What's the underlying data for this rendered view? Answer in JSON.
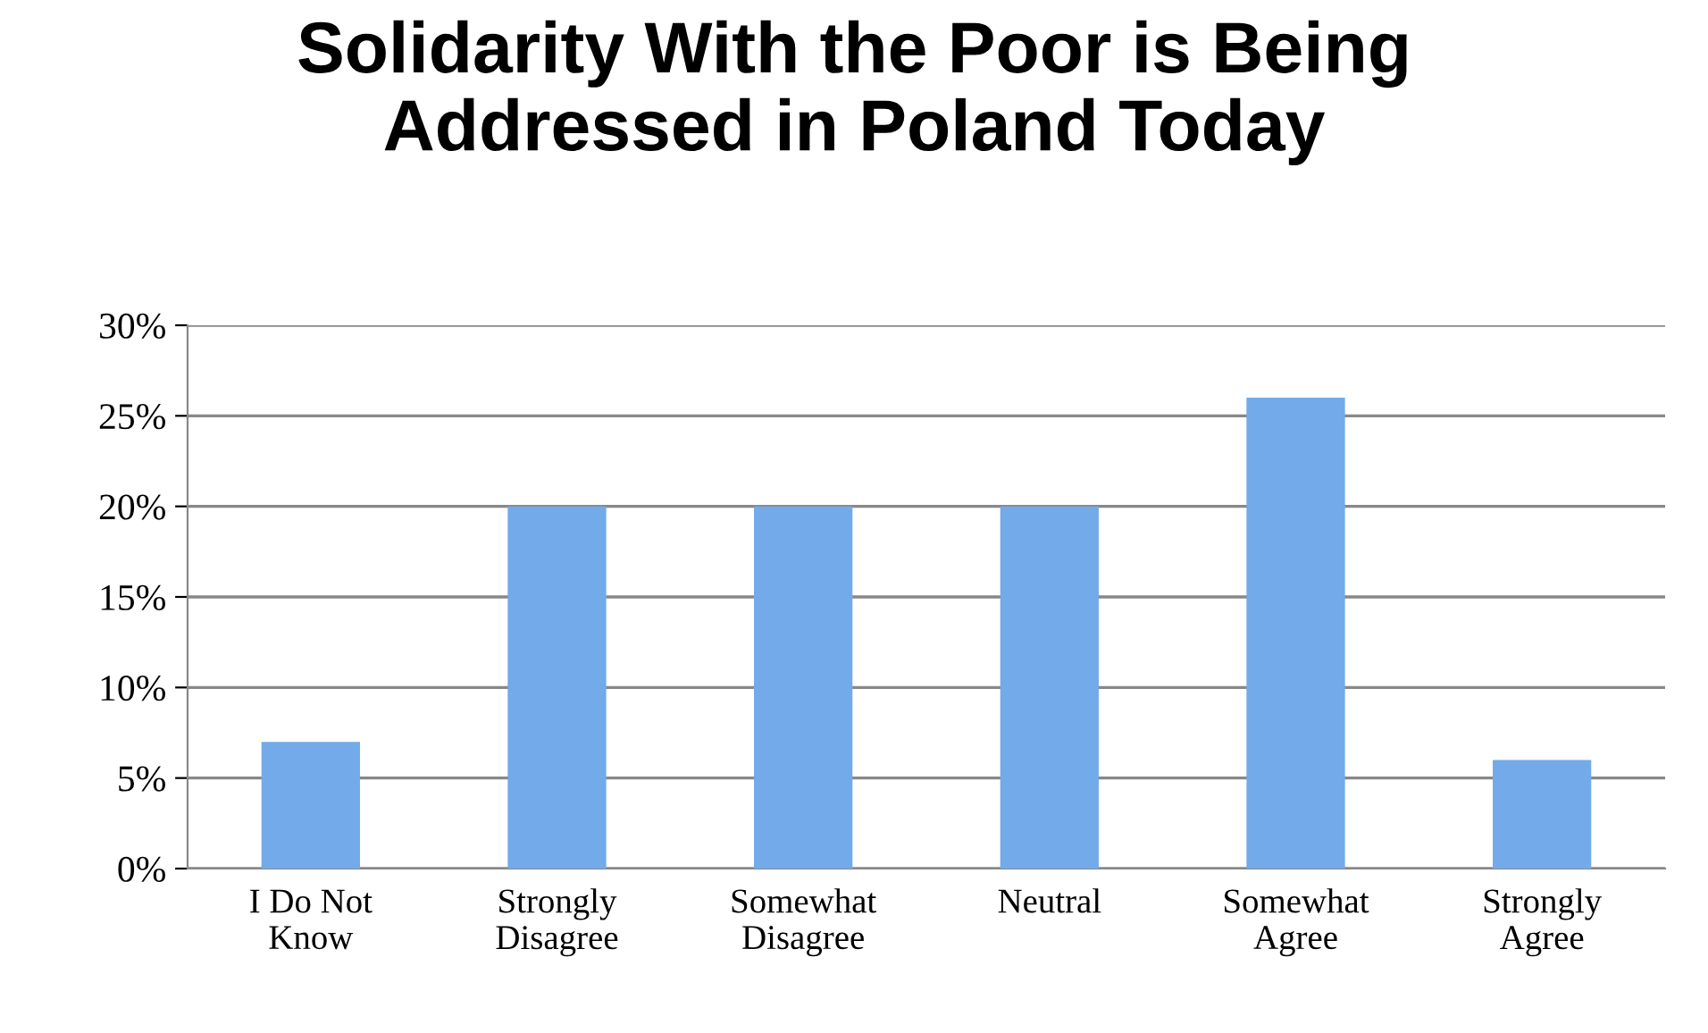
{
  "chart_data": {
    "type": "bar",
    "title": "Solidarity With the Poor is Being\nAddressed in Poland Today",
    "categories": [
      "I Do Not\nKnow",
      "Strongly\nDisagree",
      "Somewhat\nDisagree",
      "Neutral",
      "Somewhat\nAgree",
      "Strongly\nAgree"
    ],
    "values": [
      7,
      20,
      20,
      20,
      26,
      6
    ],
    "color": "#72aaea",
    "ylim": [
      0,
      30
    ],
    "yticks": [
      {
        "value": 0,
        "label": "0%"
      },
      {
        "value": 5,
        "label": "5%"
      },
      {
        "value": 10,
        "label": "10%"
      },
      {
        "value": 15,
        "label": "15%"
      },
      {
        "value": 20,
        "label": "20%"
      },
      {
        "value": 25,
        "label": "25%"
      },
      {
        "value": 30,
        "label": "30%"
      }
    ],
    "grid": "y",
    "legend": false
  }
}
